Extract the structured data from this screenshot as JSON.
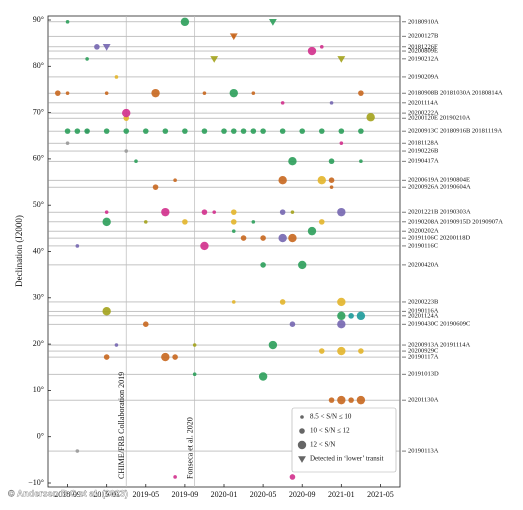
{
  "chart_data": {
    "type": "scatter",
    "ylabel": "Declination (J2000)",
    "credit": "© Andersen B C et al. (2023)",
    "xlim": [
      "2018-07",
      "2021-07"
    ],
    "xticks": [
      "2018-09",
      "2019-01",
      "2019-05",
      "2019-09",
      "2020-01",
      "2020-05",
      "2020-09",
      "2021-01",
      "2021-05"
    ],
    "ylim": [
      -10,
      90
    ],
    "yticks": [
      {
        "value": -10,
        "label": "−10°"
      },
      {
        "value": 0,
        "label": "0°"
      },
      {
        "value": 10,
        "label": "10°"
      },
      {
        "value": 20,
        "label": "20°"
      },
      {
        "value": 30,
        "label": "30°"
      },
      {
        "value": 40,
        "label": "40°"
      },
      {
        "value": 50,
        "label": "50°"
      },
      {
        "value": 60,
        "label": "60°"
      },
      {
        "value": 70,
        "label": "70°"
      },
      {
        "value": 80,
        "label": "80°"
      },
      {
        "value": 90,
        "label": "90°"
      }
    ],
    "legend": "lower right",
    "annotations": [
      {
        "text": "CHIME/FRB Collaboration 2019",
        "x": "2019-03"
      },
      {
        "text": "Fonseca et al. 2020",
        "x": "2019-10"
      }
    ],
    "sources": [
      {
        "label": "20180910A",
        "dec": 89.6
      },
      {
        "label": "20200127B",
        "dec": 86.5
      },
      {
        "label": "20181226F",
        "dec": 84.2
      },
      {
        "label": "20200809E",
        "dec": 83.3
      },
      {
        "label": "20190212A",
        "dec": 81.6
      },
      {
        "label": "20190209A",
        "dec": 77.7
      },
      {
        "label": "20180908B 20181030A 20180814A",
        "dec": 74.2
      },
      {
        "label": "20201114A",
        "dec": 72.1
      },
      {
        "label": "20200222A",
        "dec": 69.9
      },
      {
        "label": "20200120E 20190210A",
        "dec": 68.8
      },
      {
        "label": "20200913C 20180916B 20181119A",
        "dec": 66.0
      },
      {
        "label": "20181128A",
        "dec": 63.4
      },
      {
        "label": "20190226B",
        "dec": 61.7
      },
      {
        "label": "20190417A",
        "dec": 59.5
      },
      {
        "label": "20200619A 20190804E",
        "dec": 55.4
      },
      {
        "label": "20200926A 20190604A",
        "dec": 53.9
      },
      {
        "label": "20201221B 20190303A",
        "dec": 48.5
      },
      {
        "label": "20190208A 20190915D 20190907A",
        "dec": 46.4
      },
      {
        "label": "20200202A",
        "dec": 44.4
      },
      {
        "label": "20191106C 20200118D",
        "dec": 42.9
      },
      {
        "label": "20190116C",
        "dec": 41.2
      },
      {
        "label": "20200420A",
        "dec": 37.1
      },
      {
        "label": "20200223B",
        "dec": 29.1
      },
      {
        "label": "20190116A",
        "dec": 27.1
      },
      {
        "label": "20201124A",
        "dec": 26.1
      },
      {
        "label": "20190430C 20190609C",
        "dec": 24.3
      },
      {
        "label": "20200913A 20191114A",
        "dec": 19.8
      },
      {
        "label": "20200929C",
        "dec": 18.5
      },
      {
        "label": "20190117A",
        "dec": 17.2
      },
      {
        "label": "20191013D",
        "dec": 13.5
      },
      {
        "label": "20201130A",
        "dec": 7.9
      },
      {
        "label": "20190113A",
        "dec": -3.1
      }
    ],
    "series": [
      {
        "name": "8.5 < S/N ≤ 10",
        "marker": "circle",
        "size": "small",
        "x": [
          "2018-09",
          "2020-02",
          "2020-11",
          "2018-11",
          "2019-02",
          "2018-09",
          "2019-01",
          "2019-11",
          "2020-04",
          "2020-07",
          "2020-12",
          "2018-09",
          "2021-01",
          "2019-03",
          "2019-04",
          "2021-03",
          "2019-08",
          "2020-12",
          "2019-01",
          "2019-12",
          "2020-08",
          "2019-05",
          "2020-04",
          "2020-02",
          "2018-10",
          "2020-02",
          "2019-02",
          "2019-10",
          "2018-10",
          "2019-08",
          "2019-10",
          "2018-11"
        ],
        "values": [
          89.6,
          86.5,
          84.2,
          81.6,
          77.7,
          74.2,
          74.2,
          74.2,
          74.2,
          72.1,
          72.1,
          63.4,
          63.4,
          61.7,
          59.5,
          59.5,
          55.4,
          53.9,
          48.5,
          48.5,
          48.5,
          46.4,
          46.4,
          44.4,
          41.2,
          29.1,
          19.8,
          19.8,
          -3.1,
          -8.7,
          13.5,
          66.0
        ],
        "colors": [
          "#2b9e5a",
          "#c8671e",
          "#d12f8c",
          "#2b9e5a",
          "#e3b52a",
          "#c8671e",
          "#c8671e",
          "#c8671e",
          "#c8671e",
          "#d12f8c",
          "#7466b0",
          "#999999",
          "#d12f8c",
          "#999999",
          "#2b9e5a",
          "#2b9e5a",
          "#c8671e",
          "#c8671e",
          "#d12f8c",
          "#d12f8c",
          "#a3a21b",
          "#a3a21b",
          "#2b9e5a",
          "#2b9e5a",
          "#7466b0",
          "#e3b52a",
          "#7466b0",
          "#a3a21b",
          "#999999",
          "#d12f8c",
          "#2b9e5a",
          "#7466b0"
        ]
      },
      {
        "name": "10 < S/N ≤ 12",
        "marker": "circle",
        "size": "medium",
        "x": [
          "2018-12",
          "2018-08",
          "2021-03",
          "2019-03",
          "2020-12",
          "2020-12",
          "2019-06",
          "2019-11",
          "2020-02",
          "2020-07",
          "2019-09",
          "2020-02",
          "2020-11",
          "2020-03",
          "2020-05",
          "2020-05",
          "2020-07",
          "2021-02",
          "2019-05",
          "2020-08",
          "2020-11",
          "2021-03",
          "2019-01",
          "2019-08",
          "2020-12",
          "2021-02",
          "2020-08",
          "2018-09",
          "2018-10",
          "2018-11",
          "2019-01",
          "2019-03",
          "2019-05",
          "2019-07",
          "2019-09",
          "2019-11",
          "2020-01",
          "2020-02",
          "2020-03",
          "2020-04",
          "2020-05",
          "2020-07",
          "2020-09",
          "2020-11",
          "2021-01",
          "2021-03"
        ],
        "values": [
          84.2,
          74.2,
          74.2,
          68.8,
          59.5,
          55.4,
          53.9,
          48.5,
          48.5,
          48.5,
          46.4,
          46.4,
          46.4,
          42.9,
          42.9,
          37.1,
          29.1,
          26.1,
          24.3,
          24.3,
          18.5,
          18.5,
          17.2,
          17.2,
          7.9,
          7.9,
          -8.7,
          66.0,
          66.0,
          66.0,
          66.0,
          66.0,
          66.0,
          66.0,
          66.0,
          66.0,
          66.0,
          66.0,
          66.0,
          66.0,
          66.0,
          66.0,
          66.0,
          66.0,
          66.0,
          66.0
        ],
        "colors": [
          "#7466b0",
          "#c8671e",
          "#c8671e",
          "#e3b52a",
          "#2b9e5a",
          "#c8671e",
          "#c8671e",
          "#d12f8c",
          "#e3b52a",
          "#7466b0",
          "#e3b52a",
          "#e3b52a",
          "#e3b52a",
          "#c8671e",
          "#c8671e",
          "#2b9e5a",
          "#e3b52a",
          "#1c9a9a",
          "#c8671e",
          "#7466b0",
          "#e3b52a",
          "#e3b52a",
          "#c8671e",
          "#c8671e",
          "#c8671e",
          "#c8671e",
          "#d12f8c",
          "#2b9e5a",
          "#2b9e5a",
          "#2b9e5a",
          "#2b9e5a",
          "#2b9e5a",
          "#2b9e5a",
          "#2b9e5a",
          "#2b9e5a",
          "#2b9e5a",
          "#2b9e5a",
          "#2b9e5a",
          "#2b9e5a",
          "#2b9e5a",
          "#2b9e5a",
          "#2b9e5a",
          "#2b9e5a",
          "#2b9e5a",
          "#2b9e5a",
          "#2b9e5a"
        ]
      },
      {
        "name": "12 < S/N",
        "marker": "circle",
        "size": "large",
        "x": [
          "2019-09",
          "2020-10",
          "2019-06",
          "2020-02",
          "2019-03",
          "2021-04",
          "2020-08",
          "2020-07",
          "2020-11",
          "2019-07",
          "2021-01",
          "2019-01",
          "2020-10",
          "2020-07",
          "2020-08",
          "2019-11",
          "2020-09",
          "2021-01",
          "2019-01",
          "2021-01",
          "2021-03",
          "2021-01",
          "2020-06",
          "2021-01",
          "2019-07",
          "2020-05",
          "2021-01",
          "2021-03"
        ],
        "values": [
          89.6,
          83.3,
          74.2,
          74.2,
          69.9,
          69.0,
          59.5,
          55.4,
          55.4,
          48.5,
          48.5,
          46.4,
          44.4,
          42.9,
          42.9,
          41.2,
          37.1,
          29.1,
          27.1,
          26.1,
          26.1,
          24.3,
          19.8,
          18.5,
          17.2,
          13.0,
          7.9,
          7.9
        ],
        "colors": [
          "#2b9e5a",
          "#d12f8c",
          "#c8671e",
          "#2b9e5a",
          "#d12f8c",
          "#a3a21b",
          "#2b9e5a",
          "#c8671e",
          "#e3b52a",
          "#d12f8c",
          "#7466b0",
          "#2b9e5a",
          "#2b9e5a",
          "#7466b0",
          "#c8671e",
          "#d12f8c",
          "#2b9e5a",
          "#e3b52a",
          "#a3a21b",
          "#2b9e5a",
          "#1c9a9a",
          "#7466b0",
          "#2b9e5a",
          "#e3b52a",
          "#c8671e",
          "#2b9e5a",
          "#c8671e",
          "#c8671e"
        ]
      },
      {
        "name": "Detected in ‘lower’ transit",
        "marker": "triangle",
        "size": "medium",
        "x": [
          "2020-06",
          "2020-02",
          "2019-01",
          "2019-12",
          "2021-01"
        ],
        "values": [
          89.6,
          86.5,
          84.2,
          81.6,
          81.6
        ],
        "colors": [
          "#2b9e5a",
          "#c8671e",
          "#7466b0",
          "#a3a21b",
          "#a3a21b"
        ]
      }
    ]
  }
}
